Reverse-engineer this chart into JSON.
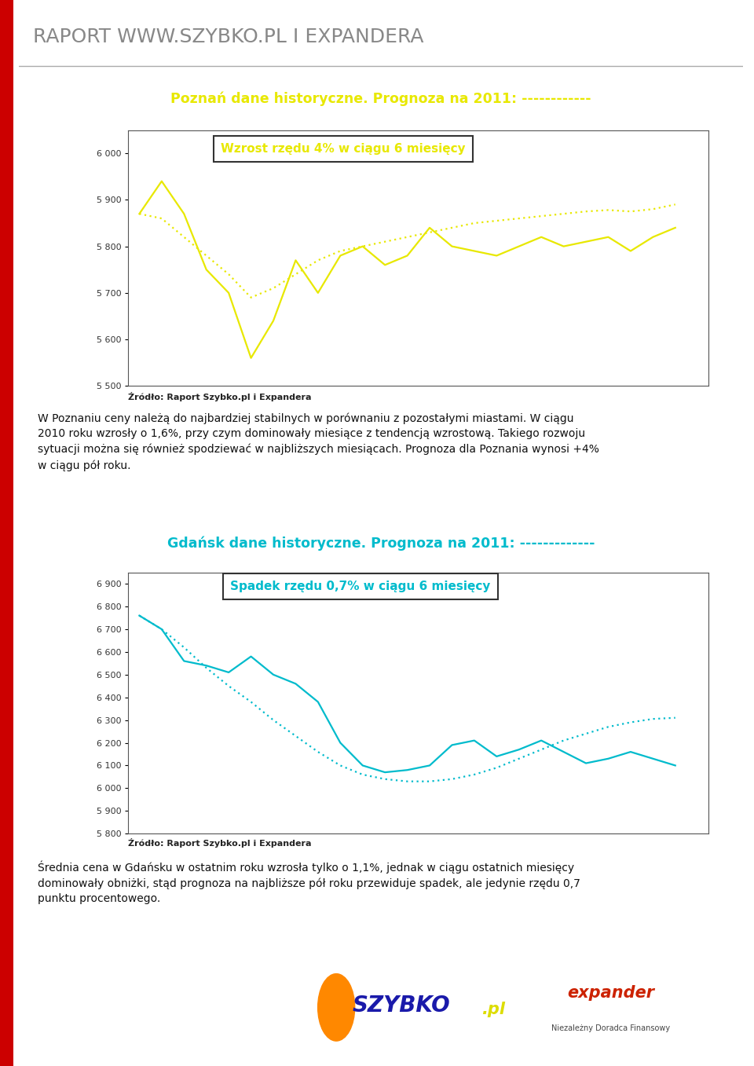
{
  "page_bg": "#ffffff",
  "header_text": "RAPORT WWW.SZYBKO.PL I EXPANDERA",
  "header_color": "#888888",
  "red_bar_color": "#cc0000",
  "title1": "Poznań dane historyczne. Prognoza na 2011: ------------",
  "title1_color": "#e8e800",
  "box_text1": "Wzrost rzędu 4% w ciągu 6 miesięcy",
  "box_text1_color": "#e8e800",
  "line1_color": "#e8e800",
  "ylim1": [
    5500,
    6050
  ],
  "yticks1": [
    5500,
    5600,
    5700,
    5800,
    5900,
    6000
  ],
  "poznan_solid": [
    5870,
    5940,
    5870,
    5750,
    5700,
    5560,
    5640,
    5770,
    5700,
    5780,
    5800,
    5760,
    5780,
    5840,
    5800,
    5790,
    5780,
    5800,
    5820,
    5800,
    5810,
    5820,
    5790,
    5820,
    5840
  ],
  "poznan_dotted_x": [
    0,
    1,
    2,
    3,
    4,
    5,
    6,
    7,
    8,
    9,
    10,
    11,
    12,
    13,
    14,
    15,
    16,
    17,
    18,
    19,
    20,
    21,
    22,
    23,
    24
  ],
  "poznan_dotted": [
    5870,
    5860,
    5820,
    5780,
    5740,
    5690,
    5710,
    5740,
    5770,
    5790,
    5800,
    5810,
    5820,
    5830,
    5840,
    5850,
    5855,
    5860,
    5865,
    5870,
    5875,
    5878,
    5875,
    5880,
    5890
  ],
  "source1": "Źródło: Raport Szybko.pl i Expandera",
  "body_text1": "W Poznaniu ceny należą do najbardziej stabilnych w porównaniu z pozostałymi miastami. W ciągu\n2010 roku wzrosły o 1,6%, przy czym dominowały miesiące z tendencją wzrostową. Takiego rozwoju\nsytuacji można się również spodziewać w najbliższych miesiącach. Prognoza dla Poznania wynosi +4%\nw ciągu pół roku.",
  "title2": "Gdańsk dane historyczne. Prognoza na 2011: -------------",
  "title2_color": "#00bbcc",
  "box_text2": "Spadek rzędu 0,7% w ciągu 6 miesięcy",
  "box_text2_color": "#00bbcc",
  "line2_color": "#00bbcc",
  "ylim2": [
    5800,
    6950
  ],
  "yticks2": [
    5800,
    5900,
    6000,
    6100,
    6200,
    6300,
    6400,
    6500,
    6600,
    6700,
    6800,
    6900
  ],
  "gdansk_solid": [
    6760,
    6700,
    6560,
    6540,
    6510,
    6580,
    6500,
    6460,
    6380,
    6200,
    6100,
    6070,
    6080,
    6100,
    6190,
    6210,
    6140,
    6170,
    6210,
    6160,
    6110,
    6130,
    6160,
    6130,
    6100
  ],
  "gdansk_dotted_x": [
    0,
    1,
    2,
    3,
    4,
    5,
    6,
    7,
    8,
    9,
    10,
    11,
    12,
    13,
    14,
    15,
    16,
    17,
    18,
    19,
    20,
    21,
    22,
    23,
    24
  ],
  "gdansk_dotted": [
    6760,
    6700,
    6620,
    6530,
    6450,
    6380,
    6300,
    6230,
    6160,
    6100,
    6060,
    6040,
    6030,
    6030,
    6040,
    6060,
    6090,
    6130,
    6170,
    6210,
    6240,
    6270,
    6290,
    6305,
    6310
  ],
  "source2": "Źródło: Raport Szybko.pl i Expandera",
  "body_text2": "Średnia cena w Gdańsku w ostatnim roku wzrosła tylko o 1,1%, jednak w ciągu ostatnich miesięcy\ndominowały obniżki, stąd prognoza na najbliższe pół roku przewiduje spadek, ale jedynie rzędu 0,7\npunktu procentowego."
}
